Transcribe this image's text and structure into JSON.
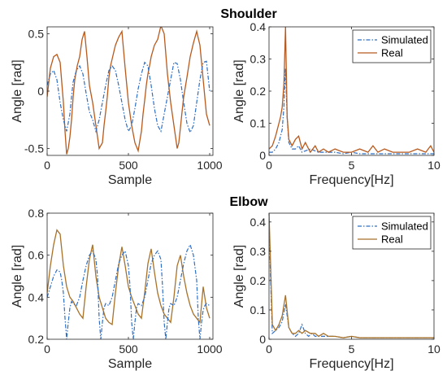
{
  "sections": {
    "top": "Shoulder",
    "bottom": "Elbow"
  },
  "colors": {
    "simulated": "#2f6fc4",
    "simulated_green": "#3a8a3a",
    "real_shoulder": "#b85a1e",
    "real_elbow": "#a8722a",
    "axis": "#262626"
  },
  "chart_data": [
    {
      "id": "shoulder-time",
      "type": "line",
      "xlabel": "Sample",
      "ylabel": "Angle [rad]",
      "xlim": [
        0,
        1020
      ],
      "ylim": [
        -0.56,
        0.56
      ],
      "xticks": [
        0,
        500,
        1000
      ],
      "xtick_labels": [
        "0",
        "500",
        "1000"
      ],
      "yticks": [
        -0.5,
        0,
        0.5
      ],
      "ytick_labels": [
        "-0.5",
        "0",
        "0.5"
      ],
      "legend": false,
      "series": [
        {
          "name": "Real",
          "color": "#b85a1e",
          "style": "solid",
          "x": [
            0,
            20,
            40,
            60,
            80,
            100,
            110,
            120,
            130,
            140,
            150,
            160,
            170,
            185,
            200,
            215,
            230,
            245,
            260,
            280,
            300,
            320,
            340,
            350,
            360,
            370,
            380,
            390,
            400,
            410,
            420,
            440,
            460,
            480,
            500,
            520,
            540,
            560,
            580,
            590,
            600,
            610,
            620,
            630,
            640,
            660,
            680,
            700,
            720,
            740,
            760,
            780,
            800,
            810,
            820,
            830,
            840,
            860,
            880,
            900,
            920,
            940,
            960,
            980,
            1000
          ],
          "y": [
            -0.05,
            0.2,
            0.3,
            0.32,
            0.25,
            -0.1,
            -0.35,
            -0.55,
            -0.5,
            -0.4,
            -0.25,
            -0.05,
            0.1,
            0.22,
            0.3,
            0.45,
            0.52,
            0.3,
            0.05,
            -0.1,
            -0.3,
            -0.5,
            -0.45,
            -0.3,
            -0.18,
            -0.05,
            0.12,
            0.22,
            0.28,
            0.34,
            0.4,
            0.47,
            0.52,
            0.2,
            -0.1,
            -0.3,
            -0.45,
            -0.52,
            -0.35,
            -0.2,
            -0.08,
            0.05,
            0.15,
            0.22,
            0.3,
            0.4,
            0.45,
            0.57,
            0.5,
            0.15,
            -0.1,
            -0.3,
            -0.5,
            -0.45,
            -0.32,
            -0.18,
            -0.05,
            0.12,
            0.3,
            0.42,
            0.52,
            0.4,
            0.1,
            -0.2,
            -0.3
          ]
        },
        {
          "name": "Simulated",
          "color": "#2f6fc4",
          "style": "dashdot",
          "x": [
            0,
            20,
            40,
            60,
            80,
            100,
            120,
            140,
            150,
            160,
            180,
            200,
            220,
            240,
            260,
            280,
            300,
            320,
            340,
            360,
            380,
            400,
            420,
            440,
            460,
            480,
            500,
            520,
            540,
            560,
            580,
            600,
            620,
            640,
            660,
            680,
            700,
            720,
            740,
            760,
            780,
            800,
            820,
            840,
            860,
            880,
            900,
            920,
            940,
            960,
            980,
            1000
          ],
          "y": [
            0.05,
            0.15,
            0.18,
            0.1,
            -0.1,
            -0.25,
            -0.35,
            -0.2,
            -0.05,
            0.08,
            0.18,
            0.22,
            0.15,
            -0.02,
            -0.18,
            -0.25,
            -0.35,
            -0.25,
            -0.1,
            0.05,
            0.18,
            0.22,
            0.18,
            0.05,
            -0.1,
            -0.25,
            -0.35,
            -0.3,
            -0.15,
            0.02,
            0.15,
            0.25,
            0.22,
            0.05,
            -0.15,
            -0.3,
            -0.35,
            -0.2,
            -0.05,
            0.1,
            0.25,
            0.24,
            0.1,
            -0.1,
            -0.28,
            -0.36,
            -0.3,
            -0.1,
            0.1,
            0.25,
            0.26,
            0.0
          ]
        }
      ]
    },
    {
      "id": "shoulder-freq",
      "type": "line",
      "xlabel": "Frequency[Hz]",
      "ylabel": "Angle [rad]",
      "xlim": [
        0,
        10
      ],
      "ylim": [
        0,
        0.4
      ],
      "xticks": [
        0,
        5,
        10
      ],
      "xtick_labels": [
        "0",
        "5",
        "10"
      ],
      "yticks": [
        0,
        0.1,
        0.2,
        0.3,
        0.4
      ],
      "ytick_labels": [
        "0",
        "0.1",
        "0.2",
        "0.3",
        "0.4"
      ],
      "legend": true,
      "legend_position": "top-right",
      "series": [
        {
          "name": "Simulated",
          "color": "#2f6fc4",
          "style": "dashdot",
          "x": [
            0,
            0.2,
            0.4,
            0.6,
            0.8,
            0.9,
            1.0,
            1.1,
            1.2,
            1.4,
            1.6,
            1.8,
            2.0,
            2.5,
            3.0,
            3.5,
            4.0,
            4.5,
            5.0,
            5.5,
            6.0,
            6.5,
            7.0,
            7.5,
            8.0,
            8.5,
            9.0,
            9.5,
            10
          ],
          "y": [
            0.01,
            0.01,
            0.02,
            0.04,
            0.08,
            0.15,
            0.27,
            0.12,
            0.04,
            0.02,
            0.02,
            0.03,
            0.01,
            0.02,
            0.01,
            0.01,
            0.01,
            0.005,
            0.01,
            0.005,
            0.005,
            0.005,
            0.005,
            0.005,
            0.005,
            0.005,
            0.005,
            0.005,
            0.005
          ]
        },
        {
          "name": "Real",
          "color": "#b85a1e",
          "style": "solid",
          "x": [
            0,
            0.2,
            0.4,
            0.6,
            0.7,
            0.8,
            0.9,
            1.0,
            1.1,
            1.2,
            1.4,
            1.6,
            1.8,
            2.0,
            2.2,
            2.5,
            2.8,
            3.0,
            3.3,
            3.6,
            4.0,
            4.5,
            5.0,
            5.5,
            6.0,
            6.3,
            6.6,
            7.0,
            7.5,
            8.0,
            8.5,
            9.0,
            9.5,
            9.8,
            10
          ],
          "y": [
            0.02,
            0.03,
            0.06,
            0.1,
            0.12,
            0.15,
            0.22,
            0.4,
            0.12,
            0.05,
            0.03,
            0.05,
            0.06,
            0.02,
            0.04,
            0.01,
            0.03,
            0.01,
            0.02,
            0.01,
            0.02,
            0.01,
            0.01,
            0.02,
            0.01,
            0.03,
            0.01,
            0.02,
            0.01,
            0.01,
            0.01,
            0.02,
            0.01,
            0.03,
            0.01
          ]
        }
      ]
    },
    {
      "id": "elbow-time",
      "type": "line",
      "xlabel": "Sample",
      "ylabel": "Angle [rad]",
      "xlim": [
        0,
        1020
      ],
      "ylim": [
        0.2,
        0.8
      ],
      "xticks": [
        0,
        500,
        1000
      ],
      "xtick_labels": [
        "0",
        "500",
        "1000"
      ],
      "yticks": [
        0.2,
        0.4,
        0.6,
        0.8
      ],
      "ytick_labels": [
        "0.2",
        "0.4",
        "0.6",
        "0.8"
      ],
      "legend": false,
      "series": [
        {
          "name": "Real",
          "color": "#a8722a",
          "style": "solid",
          "x": [
            0,
            20,
            40,
            60,
            80,
            100,
            120,
            140,
            160,
            180,
            200,
            220,
            240,
            260,
            280,
            300,
            320,
            340,
            360,
            380,
            400,
            420,
            440,
            460,
            480,
            500,
            520,
            540,
            560,
            580,
            600,
            620,
            640,
            660,
            680,
            700,
            720,
            740,
            760,
            780,
            800,
            820,
            840,
            860,
            880,
            900,
            920,
            940,
            960,
            980,
            1000
          ],
          "y": [
            0.42,
            0.55,
            0.65,
            0.72,
            0.7,
            0.55,
            0.45,
            0.4,
            0.38,
            0.35,
            0.32,
            0.3,
            0.45,
            0.58,
            0.65,
            0.5,
            0.4,
            0.35,
            0.3,
            0.28,
            0.27,
            0.42,
            0.55,
            0.64,
            0.55,
            0.45,
            0.4,
            0.36,
            0.32,
            0.3,
            0.42,
            0.56,
            0.63,
            0.52,
            0.42,
            0.36,
            0.32,
            0.3,
            0.28,
            0.4,
            0.55,
            0.6,
            0.5,
            0.42,
            0.36,
            0.32,
            0.3,
            0.28,
            0.45,
            0.35,
            0.3
          ]
        },
        {
          "name": "Simulated",
          "color": "#2f6fc4",
          "style": "dashdot",
          "x": [
            0,
            20,
            40,
            60,
            80,
            90,
            100,
            110,
            120,
            130,
            140,
            150,
            160,
            180,
            200,
            220,
            240,
            260,
            280,
            300,
            310,
            320,
            330,
            340,
            350,
            360,
            380,
            400,
            420,
            440,
            460,
            480,
            500,
            510,
            520,
            530,
            540,
            550,
            560,
            580,
            600,
            620,
            640,
            660,
            680,
            700,
            710,
            720,
            730,
            740,
            750,
            760,
            780,
            800,
            820,
            840,
            860,
            880,
            900,
            920,
            930,
            940,
            950,
            960,
            970,
            980,
            1000
          ],
          "y": [
            0.4,
            0.45,
            0.5,
            0.53,
            0.52,
            0.48,
            0.42,
            0.3,
            0.2,
            0.28,
            0.35,
            0.38,
            0.37,
            0.36,
            0.4,
            0.48,
            0.55,
            0.6,
            0.62,
            0.58,
            0.5,
            0.3,
            0.2,
            0.28,
            0.35,
            0.37,
            0.36,
            0.4,
            0.48,
            0.56,
            0.6,
            0.62,
            0.55,
            0.45,
            0.28,
            0.2,
            0.28,
            0.35,
            0.37,
            0.36,
            0.4,
            0.48,
            0.56,
            0.6,
            0.62,
            0.58,
            0.45,
            0.28,
            0.2,
            0.28,
            0.35,
            0.37,
            0.36,
            0.4,
            0.48,
            0.56,
            0.62,
            0.65,
            0.6,
            0.48,
            0.3,
            0.2,
            0.28,
            0.34,
            0.36,
            0.37,
            0.36
          ]
        }
      ]
    },
    {
      "id": "elbow-freq",
      "type": "line",
      "xlabel": "Frequency[Hz]",
      "ylabel": "Angle [rad]",
      "xlim": [
        0,
        10
      ],
      "ylim": [
        0,
        0.43
      ],
      "xticks": [
        0,
        5,
        10
      ],
      "xtick_labels": [
        "0",
        "5",
        "10"
      ],
      "yticks": [
        0,
        0.1,
        0.2,
        0.3,
        0.4
      ],
      "ytick_labels": [
        "0",
        "0.1",
        "0.2",
        "0.3",
        "0.4"
      ],
      "legend": true,
      "legend_position": "top-right",
      "series": [
        {
          "name": "Simulated",
          "color": "#2f6fc4",
          "style": "dashdot",
          "x": [
            0,
            0.1,
            0.2,
            0.4,
            0.6,
            0.8,
            1.0,
            1.2,
            1.4,
            1.6,
            1.8,
            2.0,
            2.2,
            2.4,
            2.6,
            2.8,
            3.0,
            3.5,
            4.0,
            4.5,
            5.0,
            5.5,
            6.0,
            7.0,
            8.0,
            9.0,
            10
          ],
          "y": [
            0.4,
            0.2,
            0.02,
            0.03,
            0.04,
            0.06,
            0.12,
            0.04,
            0.02,
            0.01,
            0.02,
            0.05,
            0.02,
            0.01,
            0.02,
            0.01,
            0.01,
            0.01,
            0.01,
            0.005,
            0.01,
            0.005,
            0.005,
            0.005,
            0.005,
            0.005,
            0.005
          ]
        },
        {
          "name": "Real",
          "color": "#a8722a",
          "style": "solid",
          "x": [
            0,
            0.1,
            0.2,
            0.4,
            0.6,
            0.8,
            1.0,
            1.2,
            1.4,
            1.6,
            1.8,
            2.0,
            2.2,
            2.5,
            2.8,
            3.0,
            3.3,
            3.6,
            4.0,
            4.5,
            5.0,
            5.5,
            6.0,
            7.0,
            8.0,
            9.0,
            10
          ],
          "y": [
            0.43,
            0.25,
            0.05,
            0.03,
            0.05,
            0.08,
            0.15,
            0.04,
            0.02,
            0.02,
            0.03,
            0.02,
            0.03,
            0.02,
            0.02,
            0.01,
            0.02,
            0.01,
            0.01,
            0.005,
            0.01,
            0.005,
            0.005,
            0.005,
            0.005,
            0.005,
            0.005
          ]
        }
      ]
    }
  ]
}
